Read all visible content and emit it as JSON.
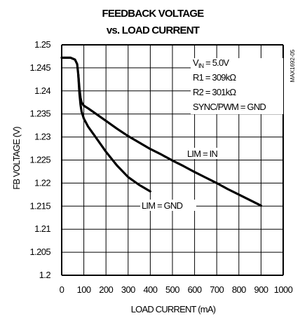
{
  "chart_data": {
    "type": "line",
    "title_line1": "FEEDBACK VOLTAGE",
    "title_line2": "vs. LOAD CURRENT",
    "xlabel": "LOAD CURRENT (mA)",
    "ylabel": "FB VOLTAGE (V)",
    "xlim": [
      0,
      1000
    ],
    "ylim": [
      1.2,
      1.25
    ],
    "xticks": [
      "0",
      "100",
      "200",
      "300",
      "400",
      "500",
      "600",
      "700",
      "800",
      "900",
      "1000"
    ],
    "yticks": [
      "1.25",
      "1.245",
      "1.24",
      "1.235",
      "1.23",
      "1.225",
      "1.22",
      "1.215",
      "1.21",
      "1.205",
      "1.2"
    ],
    "grid": true,
    "series": [
      {
        "name": "LIM = IN",
        "x": [
          0,
          40,
          60,
          70,
          75,
          80,
          85,
          90,
          100,
          120,
          150,
          200,
          250,
          300,
          350,
          400,
          450,
          500,
          550,
          600,
          650,
          700,
          750,
          800,
          850,
          900
        ],
        "y": [
          1.2472,
          1.2472,
          1.2468,
          1.2458,
          1.2435,
          1.2405,
          1.2385,
          1.2375,
          1.2368,
          1.2362,
          1.2352,
          1.2335,
          1.2318,
          1.2302,
          1.2288,
          1.2274,
          1.2262,
          1.2249,
          1.2237,
          1.2224,
          1.2212,
          1.22,
          1.2187,
          1.2175,
          1.2163,
          1.2151
        ]
      },
      {
        "name": "LIM = GND",
        "x": [
          75,
          80,
          85,
          90,
          100,
          120,
          150,
          200,
          250,
          300,
          350,
          400
        ],
        "y": [
          1.2435,
          1.2395,
          1.237,
          1.2355,
          1.234,
          1.2322,
          1.2302,
          1.2268,
          1.2238,
          1.2213,
          1.2196,
          1.2182
        ]
      }
    ],
    "annotations": {
      "vin_prefix": "V",
      "vin_sub": "IN",
      "vin_value": " = 5.0V",
      "r1": "R1 = 309kΩ",
      "r2": "R2 = 301kΩ",
      "sync": "SYNC/PWM = GND",
      "lim_in": "LIM = IN",
      "lim_gnd": "LIM = GND",
      "code": "MAX1692-05"
    }
  }
}
